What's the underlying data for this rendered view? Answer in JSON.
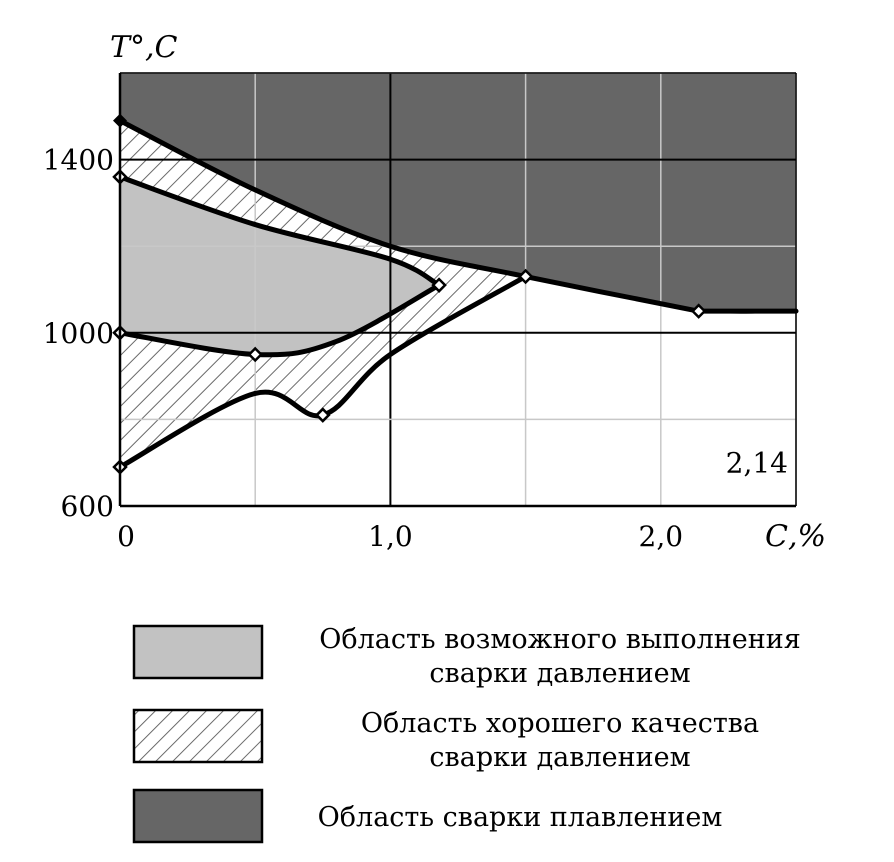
{
  "chart_data": {
    "type": "area",
    "title": "",
    "xlabel": "С,%",
    "ylabel": "T°,С",
    "xlim": [
      0,
      2.5
    ],
    "ylim": [
      600,
      1600
    ],
    "xticks": [
      0,
      0.5,
      1.0,
      1.5,
      2.0,
      2.5
    ],
    "xtick_labels": [
      "0",
      "",
      "1,0",
      "",
      "2,0",
      ""
    ],
    "yticks": [
      600,
      800,
      1000,
      1200,
      1400,
      1600
    ],
    "ytick_labels": [
      "600",
      "",
      "1000",
      "",
      "1400",
      ""
    ],
    "grid": true,
    "annotation": "2,14",
    "colors": {
      "melting": "#666666",
      "possible": "#c2c2c2",
      "hatch": "#6a6a6a",
      "grid": "#c8c8c8",
      "major_grid": "#000000"
    },
    "curves": {
      "solidus": {
        "x": [
          0,
          0.5,
          1.0,
          1.5,
          2.14,
          2.5
        ],
        "y": [
          1490,
          1330,
          1200,
          1130,
          1050,
          1050
        ],
        "markers": [
          0,
          4
        ]
      },
      "upper_bound": {
        "x": [
          0,
          0.5,
          1.0,
          1.18
        ],
        "y": [
          1360,
          1250,
          1170,
          1110
        ],
        "markers": [
          0,
          3
        ]
      },
      "lower_bound": {
        "x": [
          0,
          0.5,
          0.8,
          1.18
        ],
        "y": [
          1000,
          950,
          980,
          1110
        ],
        "markers": [
          0,
          1
        ]
      },
      "good_quality_low": {
        "x": [
          0,
          0.5,
          0.75,
          1.0,
          1.5
        ],
        "y": [
          690,
          860,
          810,
          950,
          1130
        ],
        "markers": [
          0,
          2,
          4
        ]
      }
    },
    "series": [
      {
        "name": "Область возможного выполнения сварки давлением"
      },
      {
        "name": "Область хорошего качества сварки давлением"
      },
      {
        "name": "Область сварки плавлением"
      }
    ]
  },
  "legend": {
    "items": [
      {
        "line1": "Область возможного выполнения",
        "line2": "сварки давлением",
        "style": "solid-light"
      },
      {
        "line1": "Область хорошего качества",
        "line2": "сварки давлением",
        "style": "hatched"
      },
      {
        "line1": "Область сварки плавлением",
        "line2": "",
        "style": "solid-dark"
      }
    ]
  }
}
